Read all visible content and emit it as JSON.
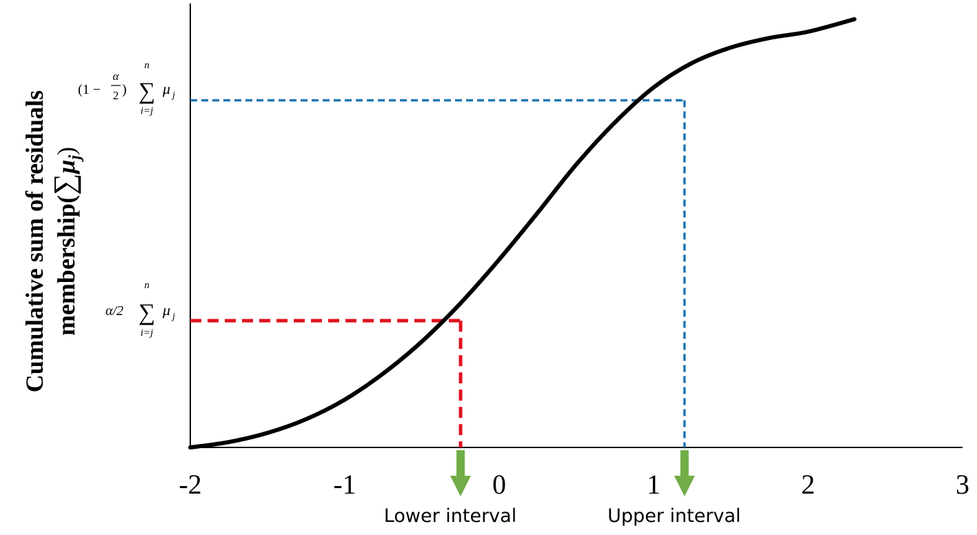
{
  "chart_data": {
    "type": "line",
    "title": "",
    "xlabel": "",
    "ylabel": {
      "line1": "Cumulative sum of residuals",
      "line2_prefix": "membership(",
      "line2_sum": "∑",
      "line2_mu": "μ",
      "line2_sub": "j",
      "line2_suffix": ")"
    },
    "xlim": [
      -2,
      3
    ],
    "x_ticks": [
      "-2",
      "-1",
      "0",
      "1",
      "2",
      "3"
    ],
    "x_tick_values": [
      -2,
      -1,
      0,
      1,
      2,
      3
    ],
    "ylim": [
      0,
      1
    ],
    "grid": false,
    "legend": "none",
    "series": [
      {
        "color": "#000000",
        "x": [
          -2.0,
          -1.75,
          -1.5,
          -1.25,
          -1.0,
          -0.75,
          -0.5,
          -0.25,
          0.0,
          0.25,
          0.5,
          0.75,
          1.0,
          1.25,
          1.5,
          1.75,
          2.0,
          2.3
        ],
        "y": [
          0.0,
          0.013,
          0.035,
          0.068,
          0.115,
          0.178,
          0.255,
          0.347,
          0.452,
          0.565,
          0.681,
          0.782,
          0.866,
          0.925,
          0.962,
          0.985,
          1.0,
          1.03
        ]
      }
    ],
    "reference_lines": [
      {
        "id": "lower",
        "color": "#e0121f",
        "x": -0.25,
        "y": 0.305,
        "y_label": {
          "prefix": "α/2",
          "sum": "∑",
          "top": "n",
          "bottom": "i=j",
          "mu": "μ",
          "sub": "j"
        },
        "interval_label": "Lower interval"
      },
      {
        "id": "upper",
        "color": "#1f77b4",
        "x": 1.2,
        "y": 0.835,
        "y_label": {
          "open": "(1 −",
          "frac_num": "α",
          "frac_den": "2",
          "close": ")",
          "sum": "∑",
          "top": "n",
          "bottom": "i=j",
          "mu": "μ",
          "sub": "j"
        },
        "interval_label": "Upper interval"
      }
    ],
    "arrow_color": "#70ad47"
  }
}
